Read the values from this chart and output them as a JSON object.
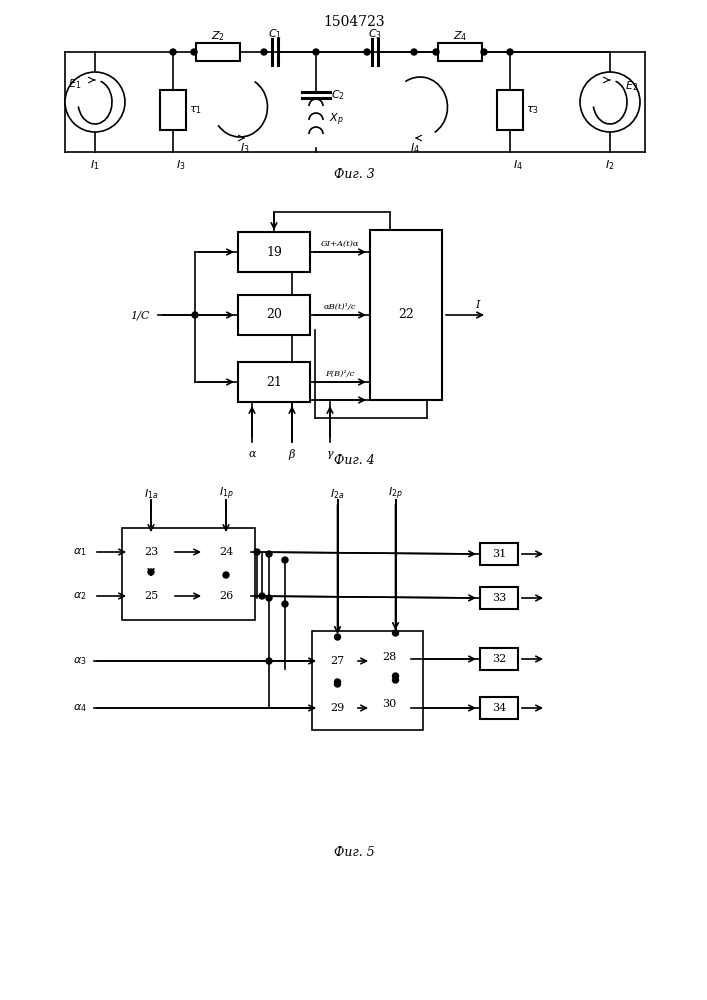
{
  "title": "1504723",
  "fig3_caption": "Фиг. 3",
  "fig4_caption": "Фиг. 4",
  "fig5_caption": "Фиг. 5",
  "bg_color": "#ffffff",
  "line_color": "#000000",
  "lw": 1.2,
  "blw": 1.5
}
